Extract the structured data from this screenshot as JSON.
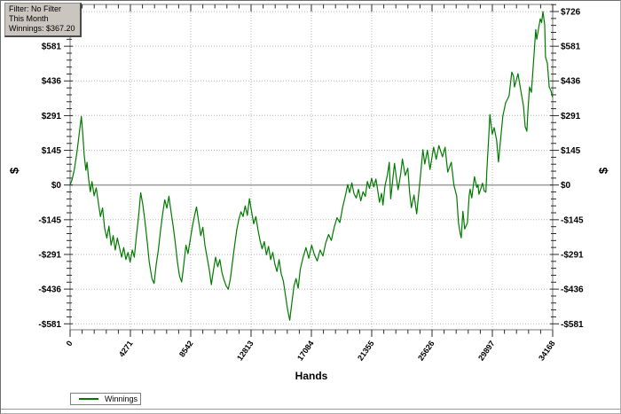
{
  "info_box": {
    "lines": [
      "Filter: No Filter",
      "This Month",
      "Winnings: $367.20"
    ]
  },
  "legend": {
    "label": "Winnings",
    "line_color": "#007B00"
  },
  "colors": {
    "line": "#007B00",
    "grid": "#b5b5b5",
    "zero_line": "#a0a0a0",
    "plot_border": "#777777",
    "tick": "#2a2a2a",
    "text": "#000000"
  },
  "chart_data": {
    "type": "line",
    "title": "",
    "xlabel": "Hands",
    "ylabel_left": "$",
    "ylabel_right": "$",
    "legend_position": "bottom-left",
    "grid": "dotted major gridlines, solid zero line",
    "xlim": [
      0,
      34168
    ],
    "ylim": [
      -606,
      756
    ],
    "x_ticks": [
      0,
      4271,
      8542,
      12813,
      17084,
      21355,
      25626,
      29897,
      34168
    ],
    "x_tick_labels": [
      "0",
      "4271",
      "8542",
      "12813",
      "17084",
      "21355",
      "25626",
      "29897",
      "34168"
    ],
    "x_minor_per_major": 5,
    "y_ticks": [
      726,
      581,
      436,
      291,
      145,
      0,
      -145,
      -291,
      -436,
      -581
    ],
    "y_tick_labels": [
      "$726",
      "$581",
      "$436",
      "$291",
      "$145",
      "$0",
      "-$145",
      "-$291",
      "-$436",
      "-$581"
    ],
    "y_minor_step": 29.05,
    "final_value": 367.2,
    "series": [
      {
        "name": "Winnings",
        "color": "#007B00",
        "points": [
          [
            0,
            0
          ],
          [
            150,
            25
          ],
          [
            300,
            65
          ],
          [
            500,
            145
          ],
          [
            650,
            215
          ],
          [
            800,
            287
          ],
          [
            900,
            215
          ],
          [
            1000,
            125
          ],
          [
            1120,
            62
          ],
          [
            1200,
            95
          ],
          [
            1320,
            22
          ],
          [
            1430,
            -28
          ],
          [
            1550,
            14
          ],
          [
            1700,
            -45
          ],
          [
            1850,
            -12
          ],
          [
            2000,
            -72
          ],
          [
            2150,
            -132
          ],
          [
            2300,
            -96
          ],
          [
            2450,
            -182
          ],
          [
            2600,
            -222
          ],
          [
            2750,
            -172
          ],
          [
            2900,
            -252
          ],
          [
            3050,
            -212
          ],
          [
            3200,
            -272
          ],
          [
            3350,
            -222
          ],
          [
            3500,
            -262
          ],
          [
            3650,
            -302
          ],
          [
            3800,
            -262
          ],
          [
            3950,
            -312
          ],
          [
            4100,
            -282
          ],
          [
            4250,
            -322
          ],
          [
            4400,
            -272
          ],
          [
            4550,
            -302
          ],
          [
            4700,
            -212
          ],
          [
            4850,
            -132
          ],
          [
            5000,
            -32
          ],
          [
            5150,
            -82
          ],
          [
            5300,
            -152
          ],
          [
            5450,
            -232
          ],
          [
            5600,
            -322
          ],
          [
            5800,
            -392
          ],
          [
            5950,
            -412
          ],
          [
            6100,
            -332
          ],
          [
            6250,
            -272
          ],
          [
            6400,
            -192
          ],
          [
            6550,
            -122
          ],
          [
            6700,
            -62
          ],
          [
            6850,
            -97
          ],
          [
            7000,
            -47
          ],
          [
            7150,
            -112
          ],
          [
            7300,
            -172
          ],
          [
            7450,
            -242
          ],
          [
            7600,
            -322
          ],
          [
            7750,
            -382
          ],
          [
            7900,
            -406
          ],
          [
            8050,
            -332
          ],
          [
            8200,
            -252
          ],
          [
            8350,
            -287
          ],
          [
            8500,
            -232
          ],
          [
            8650,
            -177
          ],
          [
            8800,
            -132
          ],
          [
            8950,
            -92
          ],
          [
            9100,
            -152
          ],
          [
            9250,
            -212
          ],
          [
            9400,
            -177
          ],
          [
            9550,
            -252
          ],
          [
            9700,
            -302
          ],
          [
            9850,
            -352
          ],
          [
            10000,
            -417
          ],
          [
            10150,
            -357
          ],
          [
            10300,
            -302
          ],
          [
            10450,
            -342
          ],
          [
            10600,
            -312
          ],
          [
            10750,
            -367
          ],
          [
            10900,
            -397
          ],
          [
            11050,
            -422
          ],
          [
            11200,
            -436
          ],
          [
            11350,
            -392
          ],
          [
            11500,
            -322
          ],
          [
            11650,
            -252
          ],
          [
            11800,
            -187
          ],
          [
            11950,
            -142
          ],
          [
            12100,
            -112
          ],
          [
            12250,
            -132
          ],
          [
            12400,
            -87
          ],
          [
            12550,
            -127
          ],
          [
            12700,
            -57
          ],
          [
            12850,
            -112
          ],
          [
            13000,
            -162
          ],
          [
            13150,
            -132
          ],
          [
            13300,
            -187
          ],
          [
            13450,
            -232
          ],
          [
            13600,
            -267
          ],
          [
            13750,
            -237
          ],
          [
            13900,
            -292
          ],
          [
            14050,
            -257
          ],
          [
            14200,
            -312
          ],
          [
            14350,
            -282
          ],
          [
            14500,
            -332
          ],
          [
            14650,
            -362
          ],
          [
            14800,
            -312
          ],
          [
            14950,
            -372
          ],
          [
            15100,
            -402
          ],
          [
            15250,
            -462
          ],
          [
            15400,
            -522
          ],
          [
            15550,
            -566
          ],
          [
            15700,
            -492
          ],
          [
            15850,
            -422
          ],
          [
            16000,
            -392
          ],
          [
            16150,
            -432
          ],
          [
            16300,
            -352
          ],
          [
            16500,
            -302
          ],
          [
            16700,
            -262
          ],
          [
            16900,
            -307
          ],
          [
            17100,
            -252
          ],
          [
            17300,
            -292
          ],
          [
            17500,
            -318
          ],
          [
            17700,
            -272
          ],
          [
            17900,
            -297
          ],
          [
            18100,
            -242
          ],
          [
            18300,
            -207
          ],
          [
            18500,
            -232
          ],
          [
            18700,
            -177
          ],
          [
            18900,
            -137
          ],
          [
            19100,
            -157
          ],
          [
            19300,
            -92
          ],
          [
            19500,
            -42
          ],
          [
            19650,
            2
          ],
          [
            19800,
            -32
          ],
          [
            19950,
            9
          ],
          [
            20100,
            -36
          ],
          [
            20260,
            -54
          ],
          [
            20420,
            -18
          ],
          [
            20580,
            -66
          ],
          [
            20740,
            -28
          ],
          [
            20900,
            -48
          ],
          [
            21050,
            15
          ],
          [
            21200,
            -14
          ],
          [
            21350,
            28
          ],
          [
            21500,
            -8
          ],
          [
            21650,
            25
          ],
          [
            21800,
            -30
          ],
          [
            21900,
            -72
          ],
          [
            22050,
            -35
          ],
          [
            22150,
            -84
          ],
          [
            22300,
            -2
          ],
          [
            22460,
            40
          ],
          [
            22600,
            95
          ],
          [
            22700,
            -58
          ],
          [
            22970,
            91
          ],
          [
            23100,
            30
          ],
          [
            23220,
            -20
          ],
          [
            23400,
            45
          ],
          [
            23530,
            109
          ],
          [
            23720,
            40
          ],
          [
            23910,
            70
          ],
          [
            24040,
            -30
          ],
          [
            24160,
            -95
          ],
          [
            24350,
            -42
          ],
          [
            24540,
            -121
          ],
          [
            24790,
            28
          ],
          [
            24980,
            148
          ],
          [
            25110,
            88
          ],
          [
            25300,
            146
          ],
          [
            25480,
            65
          ],
          [
            25740,
            158
          ],
          [
            25920,
            108
          ],
          [
            26110,
            165
          ],
          [
            26370,
            118
          ],
          [
            26550,
            158
          ],
          [
            26740,
            54
          ],
          [
            26990,
            95
          ],
          [
            27180,
            -2
          ],
          [
            27370,
            -46
          ],
          [
            27500,
            -158
          ],
          [
            27620,
            -202
          ],
          [
            27690,
            -221
          ],
          [
            27810,
            -110
          ],
          [
            27940,
            -184
          ],
          [
            28130,
            -158
          ],
          [
            28250,
            -46
          ],
          [
            28320,
            -17
          ],
          [
            28440,
            -54
          ],
          [
            28630,
            35
          ],
          [
            28790,
            -10
          ],
          [
            28880,
            2
          ],
          [
            28950,
            -39
          ],
          [
            29070,
            -18
          ],
          [
            29200,
            8
          ],
          [
            29320,
            -25
          ],
          [
            29440,
            -30
          ],
          [
            29510,
            62
          ],
          [
            29640,
            200
          ],
          [
            29720,
            295
          ],
          [
            29890,
            213
          ],
          [
            30020,
            240
          ],
          [
            30200,
            188
          ],
          [
            30330,
            96
          ],
          [
            30460,
            180
          ],
          [
            30640,
            288
          ],
          [
            30830,
            343
          ],
          [
            31080,
            373
          ],
          [
            31270,
            473
          ],
          [
            31400,
            455
          ],
          [
            31460,
            410
          ],
          [
            31600,
            440
          ],
          [
            31710,
            466
          ],
          [
            31900,
            399
          ],
          [
            32100,
            330
          ],
          [
            32220,
            244
          ],
          [
            32340,
            225
          ],
          [
            32410,
            306
          ],
          [
            32530,
            410
          ],
          [
            32660,
            388
          ],
          [
            32850,
            547
          ],
          [
            32970,
            651
          ],
          [
            33040,
            610
          ],
          [
            33290,
            696
          ],
          [
            33380,
            680
          ],
          [
            33475,
            726
          ],
          [
            33600,
            670
          ],
          [
            33660,
            536
          ],
          [
            33790,
            510
          ],
          [
            33920,
            410
          ],
          [
            34040,
            395
          ],
          [
            34168,
            367.2
          ]
        ]
      }
    ]
  }
}
